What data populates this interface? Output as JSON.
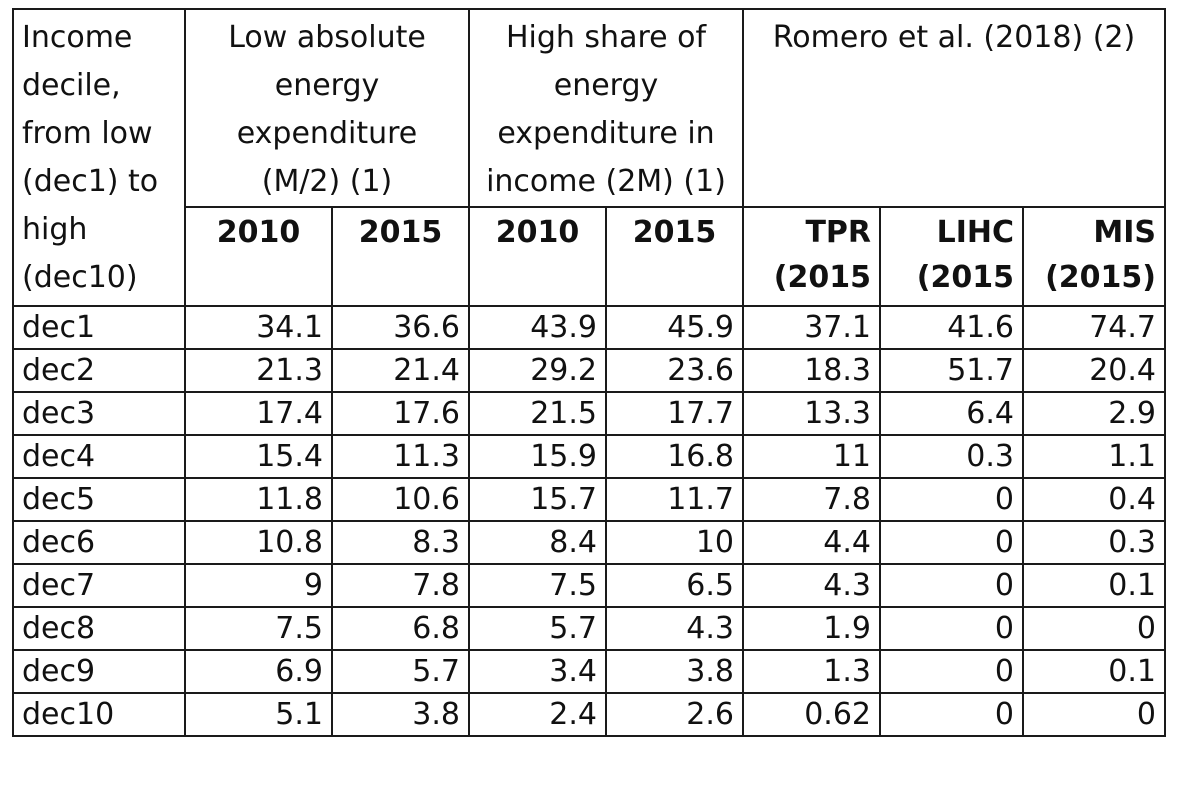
{
  "header": {
    "decile_label": "Income decile, from low (dec1) to high (dec10)",
    "group_low_abs": "Low absolute energy expenditure (M/2) (1)",
    "group_high_share": "High share of energy expenditure in income (2M) (1)",
    "group_romero": "Romero et al. (2018) (2)",
    "years": [
      "2010",
      "2015",
      "2010",
      "2015"
    ],
    "methods": [
      {
        "name": "TPR",
        "year": "(2015"
      },
      {
        "name": "LIHC",
        "year": "(2015"
      },
      {
        "name": "MIS",
        "year": "(2015)"
      }
    ]
  },
  "rows": [
    {
      "decile": "dec1",
      "values": [
        "34.1",
        "36.6",
        "43.9",
        "45.9",
        "37.1",
        "41.6",
        "74.7"
      ]
    },
    {
      "decile": "dec2",
      "values": [
        "21.3",
        "21.4",
        "29.2",
        "23.6",
        "18.3",
        "51.7",
        "20.4"
      ]
    },
    {
      "decile": "dec3",
      "values": [
        "17.4",
        "17.6",
        "21.5",
        "17.7",
        "13.3",
        "6.4",
        "2.9"
      ]
    },
    {
      "decile": "dec4",
      "values": [
        "15.4",
        "11.3",
        "15.9",
        "16.8",
        "11",
        "0.3",
        "1.1"
      ]
    },
    {
      "decile": "dec5",
      "values": [
        "11.8",
        "10.6",
        "15.7",
        "11.7",
        "7.8",
        "0",
        "0.4"
      ]
    },
    {
      "decile": "dec6",
      "values": [
        "10.8",
        "8.3",
        "8.4",
        "10",
        "4.4",
        "0",
        "0.3"
      ]
    },
    {
      "decile": "dec7",
      "values": [
        "9",
        "7.8",
        "7.5",
        "6.5",
        "4.3",
        "0",
        "0.1"
      ]
    },
    {
      "decile": "dec8",
      "values": [
        "7.5",
        "6.8",
        "5.7",
        "4.3",
        "1.9",
        "0",
        "0"
      ]
    },
    {
      "decile": "dec9",
      "values": [
        "6.9",
        "5.7",
        "3.4",
        "3.8",
        "1.3",
        "0",
        "0.1"
      ]
    },
    {
      "decile": "dec10",
      "values": [
        "5.1",
        "3.8",
        "2.4",
        "2.6",
        "0.62",
        "0",
        "0"
      ]
    }
  ]
}
